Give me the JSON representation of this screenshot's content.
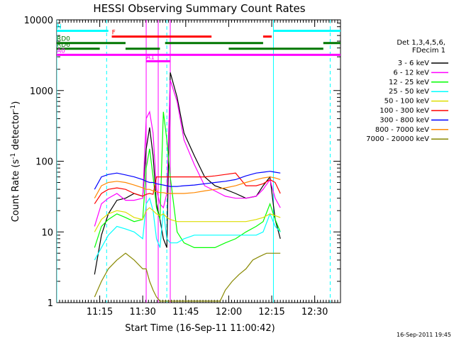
{
  "chart_data": {
    "type": "line",
    "title": "HESSI Observing Summary Count Rates",
    "xlabel": "Start Time (16-Sep-11 11:00:42)",
    "ylabel": "Count Rate (s",
    "ylabel_sup": "-1",
    "ylabel_rest": " detector",
    "ylabel_sup2": "-1",
    "ylabel_end": ")",
    "timestamp": "16-Sep-2011 19:45",
    "yscale": "log",
    "ylim": [
      1,
      10000
    ],
    "xlim": [
      11.0,
      12.65
    ],
    "y_ticks": [
      "1",
      "10",
      "100",
      "1000",
      "10000"
    ],
    "y_tick_values": [
      1,
      10,
      100,
      1000,
      10000
    ],
    "x_ticks": [
      "11:15",
      "11:30",
      "11:45",
      "12:00",
      "12:15",
      "12:30"
    ],
    "x_tick_values": [
      11.25,
      11.5,
      11.75,
      12.0,
      12.25,
      12.5
    ],
    "legend": {
      "placement": "right",
      "header": [
        "Det 1,3,4,5,6,",
        "FDecim 1"
      ]
    },
    "series": [
      {
        "name": "3 - 6 keV",
        "color": "#000000",
        "values": [
          [
            11.22,
            2.5
          ],
          [
            11.26,
            9
          ],
          [
            11.3,
            18
          ],
          [
            11.35,
            28
          ],
          [
            11.4,
            30
          ],
          [
            11.45,
            35
          ],
          [
            11.5,
            32
          ],
          [
            11.52,
            150
          ],
          [
            11.54,
            300
          ],
          [
            11.56,
            120
          ],
          [
            11.58,
            25
          ],
          [
            11.6,
            15
          ],
          [
            11.62,
            8
          ],
          [
            11.64,
            6
          ],
          [
            11.66,
            1800
          ],
          [
            11.7,
            800
          ],
          [
            11.74,
            250
          ],
          [
            11.8,
            120
          ],
          [
            11.86,
            60
          ],
          [
            11.92,
            45
          ],
          [
            11.98,
            40
          ],
          [
            12.04,
            35
          ],
          [
            12.1,
            30
          ],
          [
            12.16,
            32
          ],
          [
            12.2,
            45
          ],
          [
            12.24,
            60
          ],
          [
            12.27,
            15
          ],
          [
            12.3,
            8
          ]
        ]
      },
      {
        "name": "6 - 12 keV",
        "color": "#ff00ff",
        "values": [
          [
            11.22,
            12
          ],
          [
            11.26,
            25
          ],
          [
            11.3,
            30
          ],
          [
            11.35,
            35
          ],
          [
            11.4,
            28
          ],
          [
            11.45,
            28
          ],
          [
            11.5,
            30
          ],
          [
            11.52,
            400
          ],
          [
            11.54,
            500
          ],
          [
            11.56,
            250
          ],
          [
            11.58,
            40
          ],
          [
            11.6,
            25
          ],
          [
            11.62,
            22
          ],
          [
            11.64,
            35
          ],
          [
            11.66,
            1400
          ],
          [
            11.7,
            700
          ],
          [
            11.74,
            200
          ],
          [
            11.8,
            90
          ],
          [
            11.86,
            45
          ],
          [
            11.92,
            38
          ],
          [
            11.98,
            32
          ],
          [
            12.04,
            30
          ],
          [
            12.1,
            30
          ],
          [
            12.16,
            32
          ],
          [
            12.2,
            40
          ],
          [
            12.24,
            55
          ],
          [
            12.27,
            30
          ],
          [
            12.3,
            22
          ]
        ]
      },
      {
        "name": "12 - 25 keV",
        "color": "#00ff00",
        "values": [
          [
            11.22,
            6
          ],
          [
            11.26,
            12
          ],
          [
            11.3,
            15
          ],
          [
            11.35,
            18
          ],
          [
            11.4,
            16
          ],
          [
            11.45,
            14
          ],
          [
            11.5,
            15
          ],
          [
            11.52,
            80
          ],
          [
            11.54,
            150
          ],
          [
            11.56,
            60
          ],
          [
            11.58,
            22
          ],
          [
            11.6,
            15
          ],
          [
            11.62,
            500
          ],
          [
            11.64,
            200
          ],
          [
            11.66,
            60
          ],
          [
            11.7,
            10
          ],
          [
            11.74,
            7
          ],
          [
            11.8,
            6
          ],
          [
            11.86,
            6
          ],
          [
            11.92,
            6
          ],
          [
            11.98,
            7
          ],
          [
            12.04,
            8
          ],
          [
            12.1,
            10
          ],
          [
            12.16,
            12
          ],
          [
            12.2,
            14
          ],
          [
            12.24,
            25
          ],
          [
            12.27,
            15
          ],
          [
            12.3,
            10
          ]
        ]
      },
      {
        "name": "25 - 50 keV",
        "color": "#00ffff",
        "values": [
          [
            11.22,
            4
          ],
          [
            11.26,
            6
          ],
          [
            11.3,
            9
          ],
          [
            11.35,
            12
          ],
          [
            11.4,
            11
          ],
          [
            11.45,
            10
          ],
          [
            11.5,
            8
          ],
          [
            11.52,
            25
          ],
          [
            11.54,
            30
          ],
          [
            11.56,
            20
          ],
          [
            11.58,
            8
          ],
          [
            11.6,
            6
          ],
          [
            11.62,
            20
          ],
          [
            11.64,
            8
          ],
          [
            11.66,
            7
          ],
          [
            11.7,
            7
          ],
          [
            11.74,
            8
          ],
          [
            11.8,
            9
          ],
          [
            11.86,
            9
          ],
          [
            11.92,
            9
          ],
          [
            11.98,
            9
          ],
          [
            12.04,
            9
          ],
          [
            12.1,
            9
          ],
          [
            12.16,
            9
          ],
          [
            12.2,
            10
          ],
          [
            12.24,
            18
          ],
          [
            12.27,
            12
          ],
          [
            12.3,
            10
          ]
        ]
      },
      {
        "name": "50 - 100 keV",
        "color": "#dddd00",
        "values": [
          [
            11.22,
            10
          ],
          [
            11.26,
            15
          ],
          [
            11.3,
            18
          ],
          [
            11.35,
            20
          ],
          [
            11.4,
            19
          ],
          [
            11.45,
            16
          ],
          [
            11.5,
            15
          ],
          [
            11.52,
            20
          ],
          [
            11.54,
            22
          ],
          [
            11.56,
            20
          ],
          [
            11.58,
            18
          ],
          [
            11.6,
            17
          ],
          [
            11.62,
            18
          ],
          [
            11.64,
            16
          ],
          [
            11.66,
            15
          ],
          [
            11.7,
            14
          ],
          [
            11.74,
            14
          ],
          [
            11.8,
            14
          ],
          [
            11.86,
            14
          ],
          [
            11.92,
            14
          ],
          [
            11.98,
            14
          ],
          [
            12.04,
            14
          ],
          [
            12.1,
            14
          ],
          [
            12.16,
            15
          ],
          [
            12.2,
            16
          ],
          [
            12.24,
            18
          ],
          [
            12.27,
            17
          ],
          [
            12.3,
            16
          ]
        ]
      },
      {
        "name": "100 - 300 keV",
        "color": "#ff0000",
        "values": [
          [
            11.22,
            25
          ],
          [
            11.26,
            35
          ],
          [
            11.3,
            40
          ],
          [
            11.35,
            42
          ],
          [
            11.4,
            40
          ],
          [
            11.45,
            35
          ],
          [
            11.5,
            32
          ],
          [
            11.52,
            34
          ],
          [
            11.54,
            35
          ],
          [
            11.56,
            34
          ],
          [
            11.58,
            60
          ],
          [
            11.6,
            60
          ],
          [
            11.62,
            60
          ],
          [
            11.64,
            60
          ],
          [
            11.66,
            60
          ],
          [
            11.7,
            60
          ],
          [
            11.74,
            60
          ],
          [
            11.8,
            60
          ],
          [
            11.86,
            60
          ],
          [
            11.92,
            62
          ],
          [
            11.98,
            65
          ],
          [
            12.04,
            68
          ],
          [
            12.1,
            45
          ],
          [
            12.16,
            45
          ],
          [
            12.2,
            48
          ],
          [
            12.24,
            55
          ],
          [
            12.27,
            50
          ],
          [
            12.3,
            35
          ]
        ]
      },
      {
        "name": "300 - 800 keV",
        "color": "#0000ff",
        "values": [
          [
            11.22,
            40
          ],
          [
            11.26,
            60
          ],
          [
            11.3,
            65
          ],
          [
            11.35,
            68
          ],
          [
            11.4,
            64
          ],
          [
            11.45,
            60
          ],
          [
            11.5,
            55
          ],
          [
            11.52,
            52
          ],
          [
            11.54,
            50
          ],
          [
            11.56,
            50
          ],
          [
            11.58,
            48
          ],
          [
            11.6,
            47
          ],
          [
            11.62,
            46
          ],
          [
            11.64,
            45
          ],
          [
            11.66,
            44
          ],
          [
            11.7,
            44
          ],
          [
            11.74,
            45
          ],
          [
            11.8,
            46
          ],
          [
            11.86,
            48
          ],
          [
            11.92,
            50
          ],
          [
            11.98,
            52
          ],
          [
            12.04,
            55
          ],
          [
            12.1,
            62
          ],
          [
            12.16,
            68
          ],
          [
            12.2,
            70
          ],
          [
            12.24,
            72
          ],
          [
            12.27,
            70
          ],
          [
            12.3,
            68
          ]
        ]
      },
      {
        "name": "800 - 7000 keV",
        "color": "#ff8800",
        "values": [
          [
            11.22,
            30
          ],
          [
            11.26,
            45
          ],
          [
            11.3,
            50
          ],
          [
            11.35,
            52
          ],
          [
            11.4,
            50
          ],
          [
            11.45,
            46
          ],
          [
            11.5,
            42
          ],
          [
            11.52,
            40
          ],
          [
            11.54,
            40
          ],
          [
            11.56,
            38
          ],
          [
            11.58,
            37
          ],
          [
            11.6,
            36
          ],
          [
            11.62,
            36
          ],
          [
            11.64,
            35
          ],
          [
            11.66,
            35
          ],
          [
            11.7,
            35
          ],
          [
            11.74,
            35
          ],
          [
            11.8,
            36
          ],
          [
            11.86,
            38
          ],
          [
            11.92,
            40
          ],
          [
            11.98,
            42
          ],
          [
            12.04,
            45
          ],
          [
            12.1,
            50
          ],
          [
            12.16,
            55
          ],
          [
            12.2,
            58
          ],
          [
            12.24,
            60
          ],
          [
            12.27,
            58
          ],
          [
            12.3,
            55
          ]
        ]
      },
      {
        "name": "7000 - 20000 keV",
        "color": "#888800",
        "values": [
          [
            11.22,
            1.2
          ],
          [
            11.26,
            2
          ],
          [
            11.3,
            3
          ],
          [
            11.35,
            4
          ],
          [
            11.4,
            5
          ],
          [
            11.45,
            4
          ],
          [
            11.5,
            3
          ],
          [
            11.52,
            3
          ],
          [
            11.54,
            2
          ],
          [
            11.56,
            1.5
          ],
          [
            11.58,
            1.2
          ],
          [
            11.6,
            1.05
          ],
          [
            11.95,
            1.05
          ],
          [
            11.98,
            1.5
          ],
          [
            12.02,
            2
          ],
          [
            12.06,
            2.5
          ],
          [
            12.1,
            3
          ],
          [
            12.14,
            4
          ],
          [
            12.18,
            4.5
          ],
          [
            12.22,
            5
          ],
          [
            12.26,
            5
          ],
          [
            12.28,
            5
          ],
          [
            12.3,
            5
          ]
        ]
      }
    ],
    "flags": [
      {
        "label": "N",
        "color": "#00ffff",
        "y": 7000,
        "segments": [
          [
            11.0,
            11.3
          ],
          [
            12.26,
            12.65
          ]
        ]
      },
      {
        "label": "F",
        "color": "#ff0000",
        "y": 5800,
        "segments": [
          [
            11.32,
            11.9
          ],
          [
            12.2,
            12.25
          ]
        ]
      },
      {
        "label": "RD0",
        "color": "#007700",
        "y": 4700,
        "segments": [
          [
            11.0,
            11.4
          ],
          [
            11.63,
            12.2
          ],
          [
            12.55,
            12.65
          ]
        ]
      },
      {
        "label": "RD6",
        "color": "#007700",
        "y": 3900,
        "segments": [
          [
            11.0,
            11.25
          ],
          [
            11.4,
            11.6
          ],
          [
            12.0,
            12.55
          ]
        ]
      },
      {
        "label": "A1",
        "color": "#ff00ff",
        "y": 2600,
        "segments": [
          [
            11.52,
            11.66
          ]
        ]
      },
      {
        "label": "A0",
        "color": "#ff00ff",
        "y": 3200,
        "segments": [
          [
            11.0,
            12.65
          ]
        ]
      }
    ],
    "vlines": [
      {
        "x": 11.0,
        "color": "#00ffff",
        "dashed": false
      },
      {
        "x": 11.29,
        "color": "#00ffff",
        "dashed": true
      },
      {
        "x": 11.64,
        "color": "#00ffff",
        "dashed": true
      },
      {
        "x": 12.26,
        "color": "#00ffff",
        "dashed": false
      },
      {
        "x": 12.59,
        "color": "#00ffff",
        "dashed": true
      },
      {
        "x": 11.52,
        "color": "#ff00ff",
        "dashed": false
      },
      {
        "x": 11.66,
        "color": "#ff00ff",
        "dashed": false
      },
      {
        "x": 11.59,
        "color": "#ff00ff",
        "dashed": false
      }
    ]
  }
}
